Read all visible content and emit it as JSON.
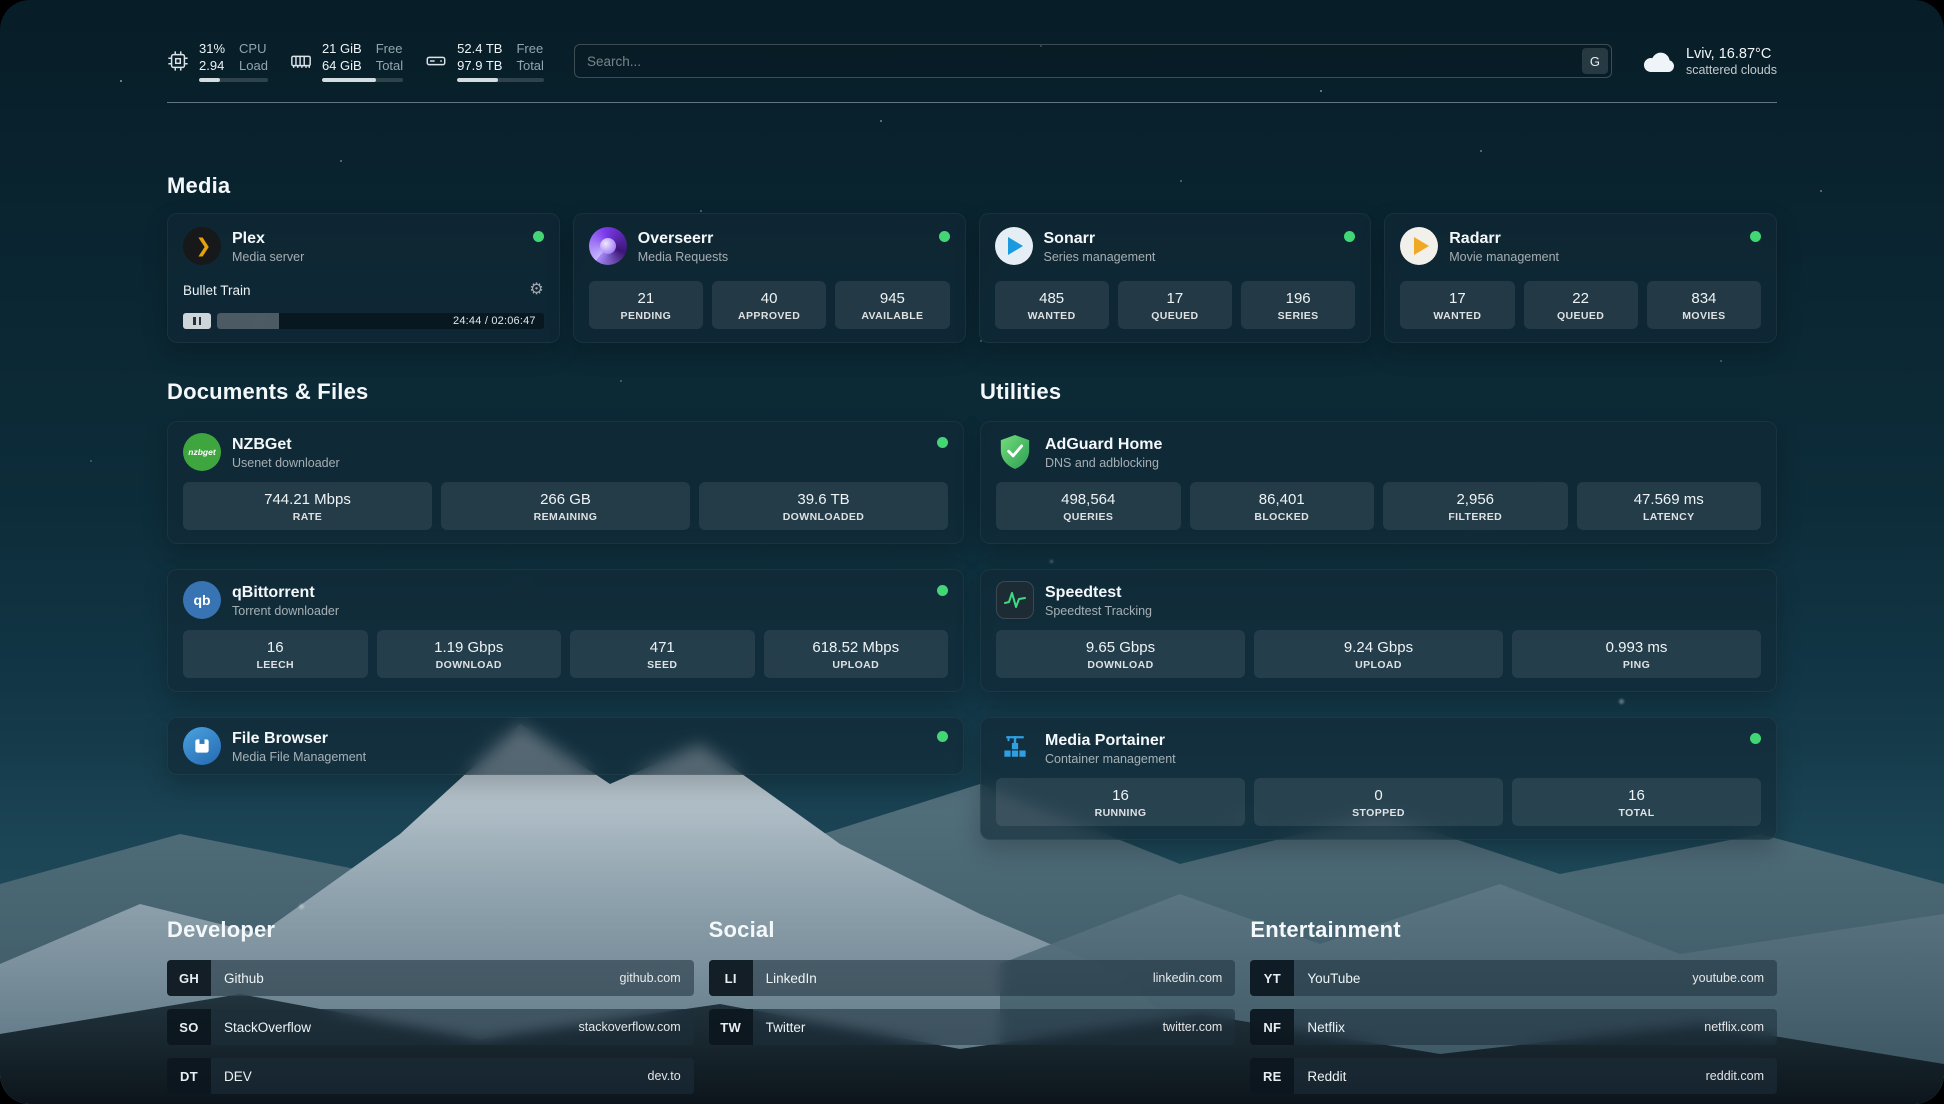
{
  "colors": {
    "status_online": "#43d675",
    "plex_accent": "#e5a00d",
    "speedtest_accent": "#3ddc84"
  },
  "topbar": {
    "cpu": {
      "percent": "31%",
      "load": "2.94",
      "label_top": "CPU",
      "label_bottom": "Load",
      "bar_percent": 31
    },
    "ram": {
      "free": "21 GiB",
      "total": "64 GiB",
      "label_top": "Free",
      "label_bottom": "Total",
      "bar_percent": 67
    },
    "disk": {
      "free": "52.4 TB",
      "total": "97.9 TB",
      "label_top": "Free",
      "label_bottom": "Total",
      "bar_percent": 47
    },
    "search": {
      "placeholder": "Search...",
      "engine_button": "G"
    },
    "weather": {
      "location": "Lviv, 16.87°C",
      "condition": "scattered clouds"
    }
  },
  "media": {
    "title": "Media",
    "plex": {
      "name": "Plex",
      "subtitle": "Media server",
      "now_playing": "Bullet Train",
      "time": "24:44 / 02:06:47",
      "progress_percent": 19
    },
    "overseerr": {
      "name": "Overseerr",
      "subtitle": "Media Requests",
      "stats": [
        {
          "value": "21",
          "label": "PENDING"
        },
        {
          "value": "40",
          "label": "APPROVED"
        },
        {
          "value": "945",
          "label": "AVAILABLE"
        }
      ]
    },
    "sonarr": {
      "name": "Sonarr",
      "subtitle": "Series management",
      "stats": [
        {
          "value": "485",
          "label": "WANTED"
        },
        {
          "value": "17",
          "label": "QUEUED"
        },
        {
          "value": "196",
          "label": "SERIES"
        }
      ]
    },
    "radarr": {
      "name": "Radarr",
      "subtitle": "Movie management",
      "stats": [
        {
          "value": "17",
          "label": "WANTED"
        },
        {
          "value": "22",
          "label": "QUEUED"
        },
        {
          "value": "834",
          "label": "MOVIES"
        }
      ]
    }
  },
  "documents": {
    "title": "Documents & Files",
    "nzbget": {
      "name": "NZBGet",
      "subtitle": "Usenet downloader",
      "icon_text": "nzbget",
      "stats": [
        {
          "value": "744.21 Mbps",
          "label": "RATE"
        },
        {
          "value": "266 GB",
          "label": "REMAINING"
        },
        {
          "value": "39.6 TB",
          "label": "DOWNLOADED"
        }
      ]
    },
    "qbittorrent": {
      "name": "qBittorrent",
      "subtitle": "Torrent downloader",
      "icon_text": "qb",
      "stats": [
        {
          "value": "16",
          "label": "LEECH"
        },
        {
          "value": "1.19 Gbps",
          "label": "DOWNLOAD"
        },
        {
          "value": "471",
          "label": "SEED"
        },
        {
          "value": "618.52 Mbps",
          "label": "UPLOAD"
        }
      ]
    },
    "filebrowser": {
      "name": "File Browser",
      "subtitle": "Media File Management"
    }
  },
  "utilities": {
    "title": "Utilities",
    "adguard": {
      "name": "AdGuard Home",
      "subtitle": "DNS and adblocking",
      "stats": [
        {
          "value": "498,564",
          "label": "QUERIES"
        },
        {
          "value": "86,401",
          "label": "BLOCKED"
        },
        {
          "value": "2,956",
          "label": "FILTERED"
        },
        {
          "value": "47.569 ms",
          "label": "LATENCY"
        }
      ]
    },
    "speedtest": {
      "name": "Speedtest",
      "subtitle": "Speedtest Tracking",
      "stats": [
        {
          "value": "9.65 Gbps",
          "label": "DOWNLOAD"
        },
        {
          "value": "9.24 Gbps",
          "label": "UPLOAD"
        },
        {
          "value": "0.993 ms",
          "label": "PING"
        }
      ]
    },
    "portainer": {
      "name": "Media Portainer",
      "subtitle": "Container management",
      "stats": [
        {
          "value": "16",
          "label": "RUNNING"
        },
        {
          "value": "0",
          "label": "STOPPED"
        },
        {
          "value": "16",
          "label": "TOTAL"
        }
      ]
    }
  },
  "bookmarks": {
    "developer": {
      "title": "Developer",
      "items": [
        {
          "abbr": "GH",
          "name": "Github",
          "url": "github.com"
        },
        {
          "abbr": "SO",
          "name": "StackOverflow",
          "url": "stackoverflow.com"
        },
        {
          "abbr": "DT",
          "name": "DEV",
          "url": "dev.to"
        }
      ]
    },
    "social": {
      "title": "Social",
      "items": [
        {
          "abbr": "LI",
          "name": "LinkedIn",
          "url": "linkedin.com"
        },
        {
          "abbr": "TW",
          "name": "Twitter",
          "url": "twitter.com"
        }
      ]
    },
    "entertainment": {
      "title": "Entertainment",
      "items": [
        {
          "abbr": "YT",
          "name": "YouTube",
          "url": "youtube.com"
        },
        {
          "abbr": "NF",
          "name": "Netflix",
          "url": "netflix.com"
        },
        {
          "abbr": "RE",
          "name": "Reddit",
          "url": "reddit.com"
        }
      ]
    }
  }
}
